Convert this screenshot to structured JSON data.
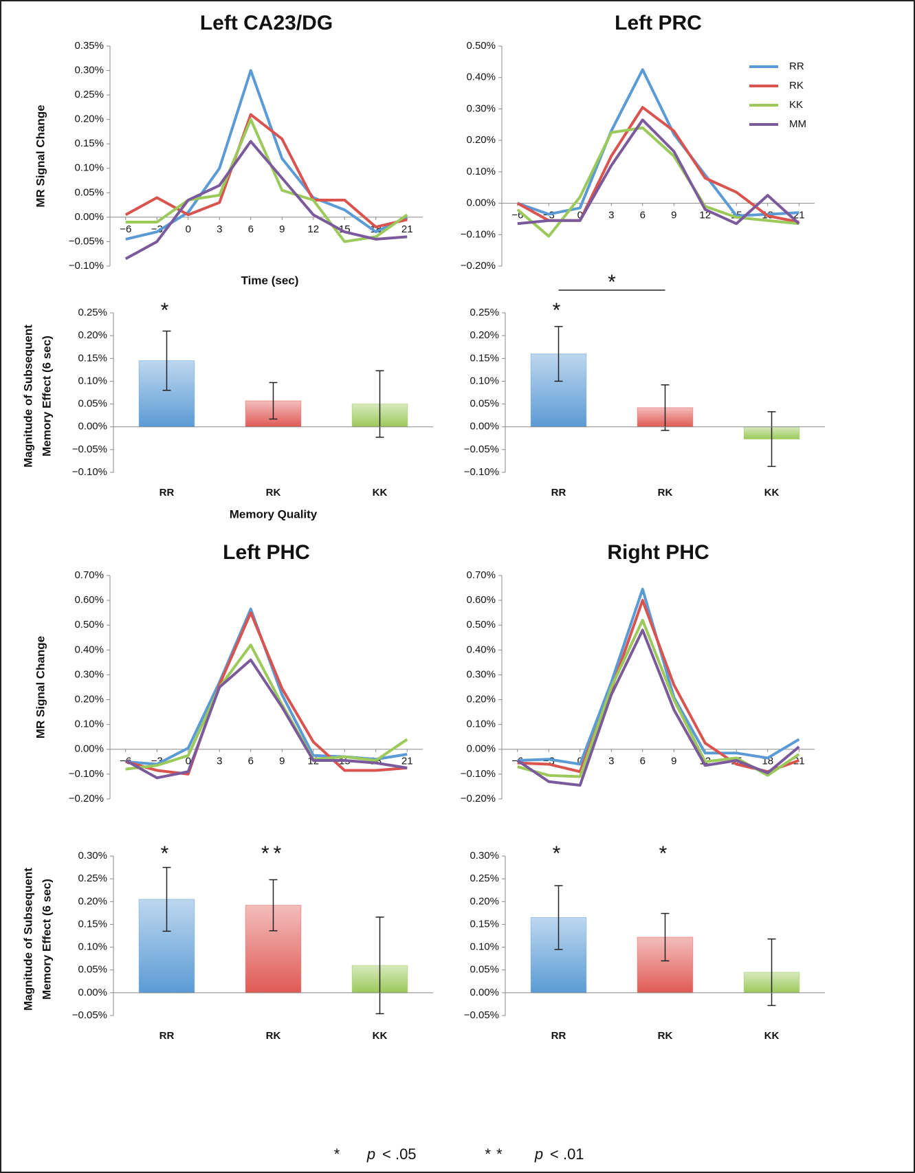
{
  "chart_data": [
    {
      "type": "line",
      "title": "Left CA23/DG",
      "ylabel": "MR Signal Change",
      "xlabel": "Time (sec)",
      "x": [
        -6,
        -3,
        0,
        3,
        6,
        9,
        12,
        15,
        18,
        21
      ],
      "xlim": [
        -7.5,
        22.5
      ],
      "xticks": [
        {
          "value": -6,
          "label": "−6"
        },
        {
          "value": -3,
          "label": "−3"
        },
        0,
        3,
        6,
        9,
        12,
        15,
        18,
        21
      ],
      "ylim": [
        -0.1,
        0.35
      ],
      "yticks": [
        {
          "value": -0.1,
          "label": "−0.10%"
        },
        {
          "value": -0.05,
          "label": "−0.05%"
        },
        {
          "value": 0,
          "label": "0.00%"
        },
        {
          "value": 0.05,
          "label": "0.05%"
        },
        {
          "value": 0.1,
          "label": "0.10%"
        },
        {
          "value": 0.15,
          "label": "0.15%"
        },
        {
          "value": 0.2,
          "label": "0.20%"
        },
        {
          "value": 0.25,
          "label": "0.25%"
        },
        {
          "value": 0.3,
          "label": "0.30%"
        },
        {
          "value": 0.35,
          "label": "0.35%"
        }
      ],
      "series": [
        {
          "name": "RR",
          "color": "#5b9bd5",
          "values": [
            -0.045,
            -0.03,
            0.01,
            0.1,
            0.3,
            0.12,
            0.04,
            0.015,
            -0.03,
            0.0
          ]
        },
        {
          "name": "RK",
          "color": "#d9534f",
          "values": [
            0.005,
            0.04,
            0.005,
            0.03,
            0.21,
            0.16,
            0.035,
            0.035,
            -0.02,
            -0.005
          ]
        },
        {
          "name": "KK",
          "color": "#9bc95a",
          "values": [
            -0.01,
            -0.01,
            0.035,
            0.045,
            0.2,
            0.055,
            0.035,
            -0.05,
            -0.04,
            0.005
          ]
        },
        {
          "name": "MM",
          "color": "#7b5a9c",
          "values": [
            -0.085,
            -0.05,
            0.035,
            0.065,
            0.155,
            0.08,
            0.005,
            -0.03,
            -0.045,
            -0.04
          ]
        }
      ]
    },
    {
      "type": "line",
      "title": "Left PRC",
      "legend": "upper right",
      "x": [
        -6,
        -3,
        0,
        3,
        6,
        9,
        12,
        15,
        18,
        21
      ],
      "xlim": [
        -7.5,
        22.5
      ],
      "xticks": [
        {
          "value": -6,
          "label": "−6"
        },
        {
          "value": -3,
          "label": "−3"
        },
        0,
        3,
        6,
        9,
        12,
        15,
        18,
        21
      ],
      "ylim": [
        -0.2,
        0.5
      ],
      "yticks": [
        {
          "value": -0.2,
          "label": "−0.20%"
        },
        {
          "value": -0.1,
          "label": "−0.10%"
        },
        {
          "value": 0,
          "label": "0.00%"
        },
        {
          "value": 0.1,
          "label": "0.10%"
        },
        {
          "value": 0.2,
          "label": "0.20%"
        },
        {
          "value": 0.3,
          "label": "0.30%"
        },
        {
          "value": 0.4,
          "label": "0.40%"
        },
        {
          "value": 0.5,
          "label": "0.50%"
        }
      ],
      "series": [
        {
          "name": "RR",
          "color": "#5b9bd5",
          "values": [
            0.0,
            -0.035,
            -0.015,
            0.23,
            0.425,
            0.22,
            0.09,
            -0.04,
            -0.035,
            -0.03
          ]
        },
        {
          "name": "RK",
          "color": "#d9534f",
          "values": [
            0.0,
            -0.055,
            -0.055,
            0.15,
            0.305,
            0.23,
            0.08,
            0.035,
            -0.04,
            -0.06
          ]
        },
        {
          "name": "KK",
          "color": "#9bc95a",
          "values": [
            -0.02,
            -0.105,
            0.02,
            0.225,
            0.24,
            0.15,
            -0.01,
            -0.045,
            -0.055,
            -0.065
          ]
        },
        {
          "name": "MM",
          "color": "#7b5a9c",
          "values": [
            -0.065,
            -0.055,
            -0.055,
            0.12,
            0.265,
            0.165,
            -0.02,
            -0.065,
            0.025,
            -0.065
          ]
        }
      ]
    },
    {
      "type": "bar",
      "ylabel": [
        "Magnitude of Subsequent",
        "Memory Effect (6 sec)"
      ],
      "xlabel": "Memory Quality",
      "categories": [
        "RR",
        "RK",
        "KK"
      ],
      "values": [
        0.145,
        0.057,
        0.05
      ],
      "errors": [
        0.065,
        0.04,
        0.073
      ],
      "colors": [
        "#5b9bd5",
        "#e05a55",
        "#9bc95a"
      ],
      "significance": [
        "*",
        null,
        null
      ],
      "ylim": [
        -0.1,
        0.25
      ],
      "yticks": [
        {
          "value": -0.1,
          "label": "−0.10%"
        },
        {
          "value": -0.05,
          "label": "−0.05%"
        },
        {
          "value": 0,
          "label": "0.00%"
        },
        {
          "value": 0.05,
          "label": "0.05%"
        },
        {
          "value": 0.1,
          "label": "0.10%"
        },
        {
          "value": 0.15,
          "label": "0.15%"
        },
        {
          "value": 0.2,
          "label": "0.20%"
        },
        {
          "value": 0.25,
          "label": "0.25%"
        }
      ]
    },
    {
      "type": "bar",
      "categories": [
        "RR",
        "RK",
        "KK"
      ],
      "values": [
        0.16,
        0.042,
        -0.027
      ],
      "errors": [
        0.06,
        0.05,
        0.06
      ],
      "colors": [
        "#5b9bd5",
        "#e05a55",
        "#9bc95a"
      ],
      "significance": [
        "*",
        null,
        null
      ],
      "comparisons": [
        {
          "pair": [
            "RR",
            "RK"
          ],
          "label": "*"
        }
      ],
      "ylim": [
        -0.1,
        0.25
      ],
      "yticks": [
        {
          "value": -0.1,
          "label": "−0.10%"
        },
        {
          "value": -0.05,
          "label": "−0.05%"
        },
        {
          "value": 0,
          "label": "0.00%"
        },
        {
          "value": 0.05,
          "label": "0.05%"
        },
        {
          "value": 0.1,
          "label": "0.10%"
        },
        {
          "value": 0.15,
          "label": "0.15%"
        },
        {
          "value": 0.2,
          "label": "0.20%"
        },
        {
          "value": 0.25,
          "label": "0.25%"
        }
      ]
    },
    {
      "type": "line",
      "title": "Left PHC",
      "ylabel": "MR Signal Change",
      "x": [
        -6,
        -3,
        0,
        3,
        6,
        9,
        12,
        15,
        18,
        21
      ],
      "xlim": [
        -7.5,
        22.5
      ],
      "xticks": [
        {
          "value": -6,
          "label": "−6"
        },
        {
          "value": -3,
          "label": "−3"
        },
        0,
        3,
        6,
        9,
        12,
        15,
        18,
        21
      ],
      "ylim": [
        -0.2,
        0.7
      ],
      "yticks": [
        {
          "value": -0.2,
          "label": "−0.20%"
        },
        {
          "value": -0.1,
          "label": "−0.10%"
        },
        {
          "value": 0,
          "label": "0.00%"
        },
        {
          "value": 0.1,
          "label": "0.10%"
        },
        {
          "value": 0.2,
          "label": "0.20%"
        },
        {
          "value": 0.3,
          "label": "0.30%"
        },
        {
          "value": 0.4,
          "label": "0.40%"
        },
        {
          "value": 0.5,
          "label": "0.50%"
        },
        {
          "value": 0.6,
          "label": "0.60%"
        },
        {
          "value": 0.7,
          "label": "0.70%"
        }
      ],
      "series": [
        {
          "name": "RR",
          "color": "#5b9bd5",
          "values": [
            -0.05,
            -0.06,
            0.005,
            0.27,
            0.565,
            0.22,
            -0.025,
            -0.03,
            -0.04,
            -0.02
          ]
        },
        {
          "name": "RK",
          "color": "#d9534f",
          "values": [
            -0.05,
            -0.085,
            -0.1,
            0.26,
            0.55,
            0.245,
            0.03,
            -0.085,
            -0.085,
            -0.075
          ]
        },
        {
          "name": "KK",
          "color": "#9bc95a",
          "values": [
            -0.08,
            -0.065,
            -0.025,
            0.25,
            0.42,
            0.18,
            -0.04,
            -0.03,
            -0.045,
            0.04
          ]
        },
        {
          "name": "MM",
          "color": "#7b5a9c",
          "values": [
            -0.045,
            -0.115,
            -0.09,
            0.25,
            0.36,
            0.17,
            -0.045,
            -0.045,
            -0.055,
            -0.075
          ]
        }
      ]
    },
    {
      "type": "line",
      "title": "Right PHC",
      "x": [
        -6,
        -3,
        0,
        3,
        6,
        9,
        12,
        15,
        18,
        21
      ],
      "xlim": [
        -7.5,
        22.5
      ],
      "xticks": [
        {
          "value": -6,
          "label": "−6"
        },
        {
          "value": -3,
          "label": "−3"
        },
        0,
        3,
        6,
        9,
        12,
        15,
        18,
        21
      ],
      "ylim": [
        -0.2,
        0.7
      ],
      "yticks": [
        {
          "value": -0.2,
          "label": "−0.20%"
        },
        {
          "value": -0.1,
          "label": "−0.10%"
        },
        {
          "value": 0,
          "label": "0.00%"
        },
        {
          "value": 0.1,
          "label": "0.10%"
        },
        {
          "value": 0.2,
          "label": "0.20%"
        },
        {
          "value": 0.3,
          "label": "0.30%"
        },
        {
          "value": 0.4,
          "label": "0.40%"
        },
        {
          "value": 0.5,
          "label": "0.50%"
        },
        {
          "value": 0.6,
          "label": "0.60%"
        },
        {
          "value": 0.7,
          "label": "0.70%"
        }
      ],
      "series": [
        {
          "name": "RR",
          "color": "#5b9bd5",
          "values": [
            -0.045,
            -0.04,
            -0.06,
            0.27,
            0.645,
            0.21,
            -0.015,
            -0.015,
            -0.035,
            0.04
          ]
        },
        {
          "name": "RK",
          "color": "#d9534f",
          "values": [
            -0.055,
            -0.06,
            -0.09,
            0.24,
            0.6,
            0.26,
            0.025,
            -0.06,
            -0.09,
            -0.045
          ]
        },
        {
          "name": "KK",
          "color": "#9bc95a",
          "values": [
            -0.07,
            -0.105,
            -0.11,
            0.25,
            0.52,
            0.2,
            -0.05,
            -0.035,
            -0.105,
            -0.02
          ]
        },
        {
          "name": "MM",
          "color": "#7b5a9c",
          "values": [
            -0.045,
            -0.13,
            -0.145,
            0.22,
            0.48,
            0.16,
            -0.065,
            -0.045,
            -0.095,
            0.01
          ]
        }
      ]
    },
    {
      "type": "bar",
      "ylabel": [
        "Magnitude of Subsequent",
        "Memory Effect (6 sec)"
      ],
      "categories": [
        "RR",
        "RK",
        "KK"
      ],
      "values": [
        0.205,
        0.192,
        0.06
      ],
      "errors": [
        0.07,
        0.056,
        0.106
      ],
      "colors": [
        "#5b9bd5",
        "#e05a55",
        "#9bc95a"
      ],
      "significance": [
        "*",
        "**",
        null
      ],
      "ylim": [
        -0.05,
        0.3
      ],
      "yticks": [
        {
          "value": -0.05,
          "label": "−0.05%"
        },
        {
          "value": 0,
          "label": "0.00%"
        },
        {
          "value": 0.05,
          "label": "0.05%"
        },
        {
          "value": 0.1,
          "label": "0.10%"
        },
        {
          "value": 0.15,
          "label": "0.15%"
        },
        {
          "value": 0.2,
          "label": "0.20%"
        },
        {
          "value": 0.25,
          "label": "0.25%"
        },
        {
          "value": 0.3,
          "label": "0.30%"
        }
      ]
    },
    {
      "type": "bar",
      "categories": [
        "RR",
        "RK",
        "KK"
      ],
      "values": [
        0.165,
        0.122,
        0.045
      ],
      "errors": [
        0.07,
        0.052,
        0.073
      ],
      "colors": [
        "#5b9bd5",
        "#e05a55",
        "#9bc95a"
      ],
      "significance": [
        "*",
        "*",
        null
      ],
      "ylim": [
        -0.05,
        0.3
      ],
      "yticks": [
        {
          "value": -0.05,
          "label": "−0.05%"
        },
        {
          "value": 0,
          "label": "0.00%"
        },
        {
          "value": 0.05,
          "label": "0.05%"
        },
        {
          "value": 0.1,
          "label": "0.10%"
        },
        {
          "value": 0.15,
          "label": "0.15%"
        },
        {
          "value": 0.2,
          "label": "0.20%"
        },
        {
          "value": 0.25,
          "label": "0.25%"
        },
        {
          "value": 0.3,
          "label": "0.30%"
        }
      ]
    }
  ],
  "notes": [
    {
      "symbol": "*",
      "variable": "p",
      "condition": "< .05"
    },
    {
      "symbol": "**",
      "variable": "p",
      "condition": "< .01"
    }
  ]
}
